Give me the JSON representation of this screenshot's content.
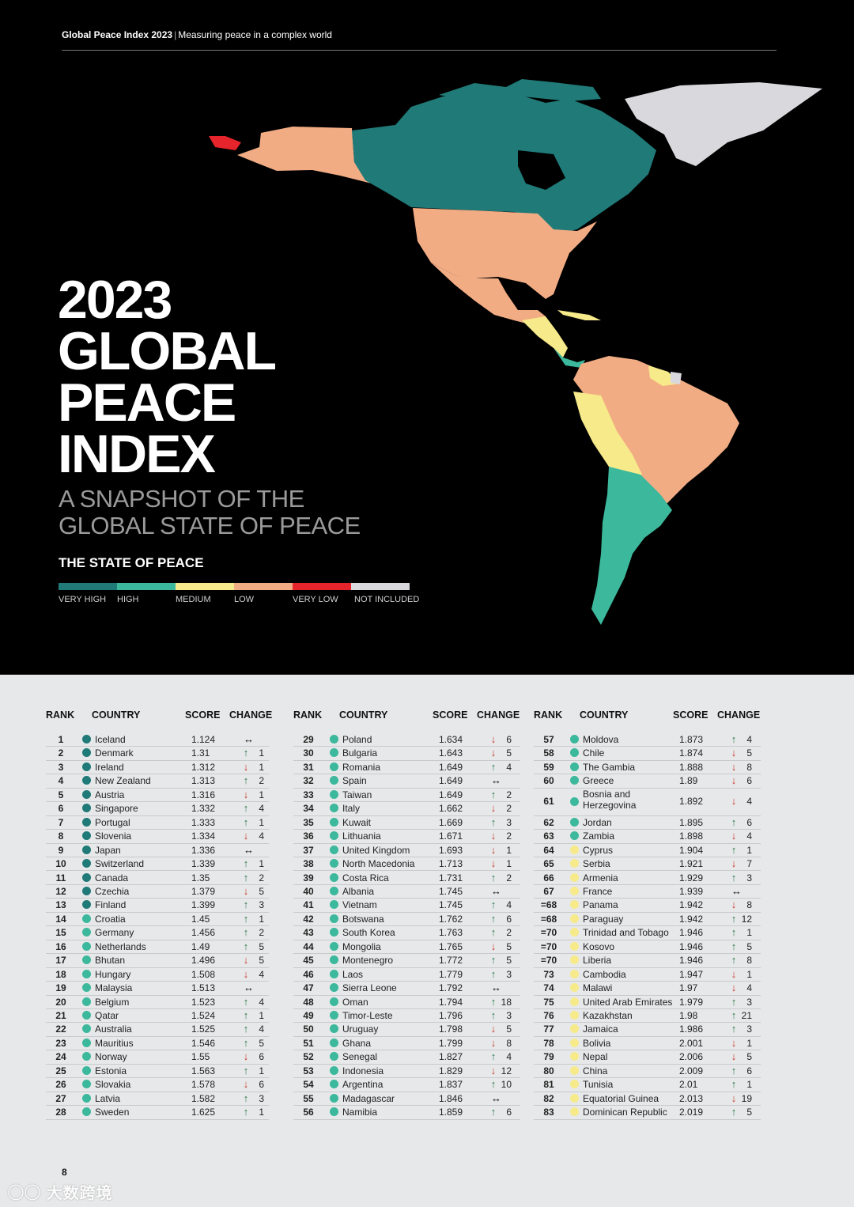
{
  "header": {
    "brand": "Global Peace Index 2023",
    "tagline": "Measuring peace in a complex world"
  },
  "title_lines": [
    "2023",
    "GLOBAL",
    "PEACE",
    "INDEX"
  ],
  "subtitle_lines": [
    "A SNAPSHOT OF THE",
    "GLOBAL STATE OF PEACE"
  ],
  "legend": {
    "title": "THE STATE OF PEACE",
    "items": [
      {
        "label": "VERY HIGH",
        "color": "#1f7a78"
      },
      {
        "label": "HIGH",
        "color": "#3cb89c"
      },
      {
        "label": "MEDIUM",
        "color": "#f7ea8a"
      },
      {
        "label": "LOW",
        "color": "#f2ac84"
      },
      {
        "label": "VERY LOW",
        "color": "#e5242b"
      },
      {
        "label": "NOT INCLUDED",
        "color": "#d9d8dc"
      }
    ]
  },
  "table": {
    "headers": {
      "rank": "RANK",
      "country": "COUNTRY",
      "score": "SCORE",
      "change": "CHANGE"
    },
    "columns": [
      [
        [
          "1",
          "Iceland",
          "1.124",
          "=",
          ""
        ],
        [
          "2",
          "Denmark",
          "1.31",
          "up",
          "1"
        ],
        [
          "3",
          "Ireland",
          "1.312",
          "down",
          "1"
        ],
        [
          "4",
          "New Zealand",
          "1.313",
          "up",
          "2"
        ],
        [
          "5",
          "Austria",
          "1.316",
          "down",
          "1"
        ],
        [
          "6",
          "Singapore",
          "1.332",
          "up",
          "4"
        ],
        [
          "7",
          "Portugal",
          "1.333",
          "up",
          "1"
        ],
        [
          "8",
          "Slovenia",
          "1.334",
          "down",
          "4"
        ],
        [
          "9",
          "Japan",
          "1.336",
          "=",
          ""
        ],
        [
          "10",
          "Switzerland",
          "1.339",
          "up",
          "1"
        ],
        [
          "11",
          "Canada",
          "1.35",
          "up",
          "2"
        ],
        [
          "12",
          "Czechia",
          "1.379",
          "down",
          "5"
        ],
        [
          "13",
          "Finland",
          "1.399",
          "up",
          "3"
        ],
        [
          "14",
          "Croatia",
          "1.45",
          "up",
          "1"
        ],
        [
          "15",
          "Germany",
          "1.456",
          "up",
          "2"
        ],
        [
          "16",
          "Netherlands",
          "1.49",
          "up",
          "5"
        ],
        [
          "17",
          "Bhutan",
          "1.496",
          "down",
          "5"
        ],
        [
          "18",
          "Hungary",
          "1.508",
          "down",
          "4"
        ],
        [
          "19",
          "Malaysia",
          "1.513",
          "=",
          ""
        ],
        [
          "20",
          "Belgium",
          "1.523",
          "up",
          "4"
        ],
        [
          "21",
          "Qatar",
          "1.524",
          "up",
          "1"
        ],
        [
          "22",
          "Australia",
          "1.525",
          "up",
          "4"
        ],
        [
          "23",
          "Mauritius",
          "1.546",
          "up",
          "5"
        ],
        [
          "24",
          "Norway",
          "1.55",
          "down",
          "6"
        ],
        [
          "25",
          "Estonia",
          "1.563",
          "up",
          "1"
        ],
        [
          "26",
          "Slovakia",
          "1.578",
          "down",
          "6"
        ],
        [
          "27",
          "Latvia",
          "1.582",
          "up",
          "3"
        ],
        [
          "28",
          "Sweden",
          "1.625",
          "up",
          "1"
        ]
      ],
      [
        [
          "29",
          "Poland",
          "1.634",
          "down",
          "6"
        ],
        [
          "30",
          "Bulgaria",
          "1.643",
          "down",
          "5"
        ],
        [
          "31",
          "Romania",
          "1.649",
          "up",
          "4"
        ],
        [
          "32",
          "Spain",
          "1.649",
          "=",
          ""
        ],
        [
          "33",
          "Taiwan",
          "1.649",
          "up",
          "2"
        ],
        [
          "34",
          "Italy",
          "1.662",
          "down",
          "2"
        ],
        [
          "35",
          "Kuwait",
          "1.669",
          "up",
          "3"
        ],
        [
          "36",
          "Lithuania",
          "1.671",
          "down",
          "2"
        ],
        [
          "37",
          "United Kingdom",
          "1.693",
          "down",
          "1"
        ],
        [
          "38",
          "North Macedonia",
          "1.713",
          "down",
          "1"
        ],
        [
          "39",
          "Costa Rica",
          "1.731",
          "up",
          "2"
        ],
        [
          "40",
          "Albania",
          "1.745",
          "=",
          ""
        ],
        [
          "41",
          "Vietnam",
          "1.745",
          "up",
          "4"
        ],
        [
          "42",
          "Botswana",
          "1.762",
          "up",
          "6"
        ],
        [
          "43",
          "South Korea",
          "1.763",
          "up",
          "2"
        ],
        [
          "44",
          "Mongolia",
          "1.765",
          "down",
          "5"
        ],
        [
          "45",
          "Montenegro",
          "1.772",
          "up",
          "5"
        ],
        [
          "46",
          "Laos",
          "1.779",
          "up",
          "3"
        ],
        [
          "47",
          "Sierra Leone",
          "1.792",
          "=",
          ""
        ],
        [
          "48",
          "Oman",
          "1.794",
          "up",
          "18"
        ],
        [
          "49",
          "Timor-Leste",
          "1.796",
          "up",
          "3"
        ],
        [
          "50",
          "Uruguay",
          "1.798",
          "down",
          "5"
        ],
        [
          "51",
          "Ghana",
          "1.799",
          "down",
          "8"
        ],
        [
          "52",
          "Senegal",
          "1.827",
          "up",
          "4"
        ],
        [
          "53",
          "Indonesia",
          "1.829",
          "down",
          "12"
        ],
        [
          "54",
          "Argentina",
          "1.837",
          "up",
          "10"
        ],
        [
          "55",
          "Madagascar",
          "1.846",
          "=",
          ""
        ],
        [
          "56",
          "Namibia",
          "1.859",
          "up",
          "6"
        ]
      ],
      [
        [
          "57",
          "Moldova",
          "1.873",
          "up",
          "4"
        ],
        [
          "58",
          "Chile",
          "1.874",
          "down",
          "5"
        ],
        [
          "59",
          "The Gambia",
          "1.888",
          "down",
          "8"
        ],
        [
          "60",
          "Greece",
          "1.89",
          "down",
          "6"
        ],
        [
          "61",
          "Bosnia and Herzegovina",
          "1.892",
          "down",
          "4"
        ],
        [
          "62",
          "Jordan",
          "1.895",
          "up",
          "6"
        ],
        [
          "63",
          "Zambia",
          "1.898",
          "down",
          "4"
        ],
        [
          "64",
          "Cyprus",
          "1.904",
          "up",
          "1"
        ],
        [
          "65",
          "Serbia",
          "1.921",
          "down",
          "7"
        ],
        [
          "66",
          "Armenia",
          "1.929",
          "up",
          "3"
        ],
        [
          "67",
          "France",
          "1.939",
          "=",
          ""
        ],
        [
          "=68",
          "Panama",
          "1.942",
          "down",
          "8"
        ],
        [
          "=68",
          "Paraguay",
          "1.942",
          "up",
          "12"
        ],
        [
          "=70",
          "Trinidad and Tobago",
          "1.946",
          "up",
          "1"
        ],
        [
          "=70",
          "Kosovo",
          "1.946",
          "up",
          "5"
        ],
        [
          "=70",
          "Liberia",
          "1.946",
          "up",
          "8"
        ],
        [
          "73",
          "Cambodia",
          "1.947",
          "down",
          "1"
        ],
        [
          "74",
          "Malawi",
          "1.97",
          "down",
          "4"
        ],
        [
          "75",
          "United Arab Emirates",
          "1.979",
          "up",
          "3"
        ],
        [
          "76",
          "Kazakhstan",
          "1.98",
          "up",
          "21"
        ],
        [
          "77",
          "Jamaica",
          "1.986",
          "up",
          "3"
        ],
        [
          "78",
          "Bolivia",
          "2.001",
          "down",
          "1"
        ],
        [
          "79",
          "Nepal",
          "2.006",
          "down",
          "5"
        ],
        [
          "80",
          "China",
          "2.009",
          "up",
          "6"
        ],
        [
          "81",
          "Tunisia",
          "2.01",
          "up",
          "1"
        ],
        [
          "82",
          "Equatorial Guinea",
          "2.013",
          "down",
          "19"
        ],
        [
          "83",
          "Dominican Republic",
          "2.019",
          "up",
          "5"
        ]
      ]
    ]
  },
  "page_number": "8",
  "watermark": "大数跨境"
}
